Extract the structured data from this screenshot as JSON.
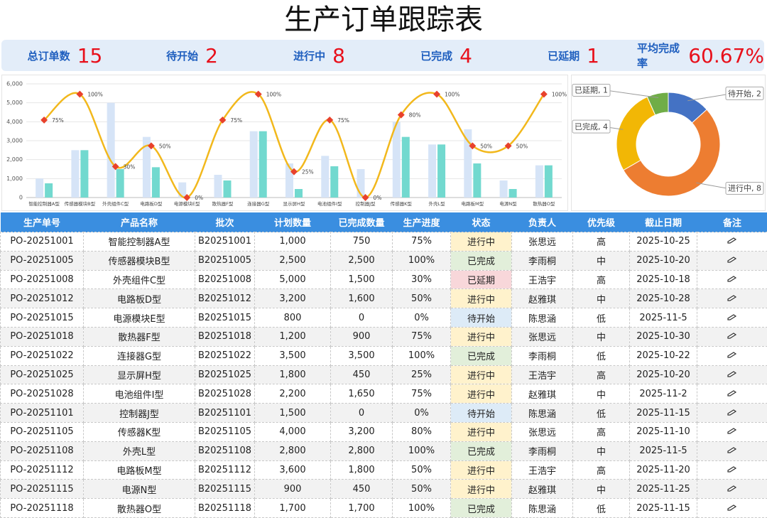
{
  "title": "生产订单跟踪表",
  "kpis": [
    {
      "label": "总订单数",
      "value": 15
    },
    {
      "label": "待开始",
      "value": 2
    },
    {
      "label": "进行中",
      "value": 8
    },
    {
      "label": "已完成",
      "value": 4
    },
    {
      "label": "已延期",
      "value": 1
    },
    {
      "label": "平均完成率",
      "value": "60.67%"
    }
  ],
  "chart_data": [
    {
      "type": "bar",
      "categories": [
        "智能控制器A型",
        "传感器模块B型",
        "外壳组件C型",
        "电路板D型",
        "电源模块E型",
        "散热器F型",
        "连接器G型",
        "显示屏H型",
        "电池组件I型",
        "控制器J型",
        "传感器K型",
        "外壳L型",
        "电路板M型",
        "电源N型",
        "散热器O型"
      ],
      "series": [
        {
          "color": "#d6e4f7",
          "values": [
            1000,
            2500,
            5000,
            3200,
            800,
            1200,
            3500,
            1800,
            2200,
            1500,
            4000,
            2800,
            3600,
            900,
            1700
          ]
        },
        {
          "color": "#72d9cf",
          "values": [
            750,
            2500,
            1500,
            1600,
            0,
            900,
            3500,
            450,
            1650,
            0,
            3200,
            2800,
            1800,
            450,
            1700
          ]
        },
        {
          "type": "line",
          "axis": "y2",
          "color": "#f2b81c",
          "marker_color": "#e8412c",
          "values": [
            75,
            100,
            30,
            50,
            0,
            75,
            100,
            25,
            75,
            0,
            80,
            100,
            50,
            50,
            100
          ],
          "value_labels": [
            "75%",
            "100%",
            "30%",
            "50%",
            "0%",
            "75%",
            "100%",
            "25%",
            "75%",
            "0%",
            "80%",
            "100%",
            "50%",
            "50%",
            "100%"
          ]
        }
      ],
      "ylim": [
        0,
        6000
      ],
      "yticks": [
        0,
        {
          "value": 1000,
          "label": "1,000"
        },
        {
          "value": 2000,
          "label": "2,000"
        },
        {
          "value": 3000,
          "label": "3,000"
        },
        {
          "value": 4000,
          "label": "4,000"
        },
        {
          "value": 5000,
          "label": "5,000"
        },
        {
          "value": 6000,
          "label": "6,000"
        }
      ],
      "y2lim": [
        0,
        110
      ],
      "grid": true
    },
    {
      "type": "pie",
      "categories": [
        "待开始",
        "进行中",
        "已完成",
        "已延期"
      ],
      "values": [
        2,
        8,
        4,
        1
      ],
      "value_labels": [
        "待开始, 2",
        "进行中, 8",
        "已完成, 4",
        "已延期, 1"
      ],
      "colors": [
        "#4472c4",
        "#ed7d31",
        "#f2b705",
        "#70ad47"
      ],
      "donut": true
    }
  ],
  "table": {
    "header": [
      "生产单号",
      "产品名称",
      "批次",
      "计划数量",
      "已完成数量",
      "生产进度",
      "状态",
      "负责人",
      "优先级",
      "截止日期",
      "备注"
    ],
    "rows": [
      [
        "PO-20251001",
        "智能控制器A型",
        "B20251001",
        "1,000",
        "750",
        "75%",
        "进行中",
        "张思远",
        "高",
        "2025-10-25"
      ],
      [
        "PO-20251005",
        "传感器模块B型",
        "B20251005",
        "2,500",
        "2,500",
        "100%",
        "已完成",
        "李雨桐",
        "中",
        "2025-10-20"
      ],
      [
        "PO-20251008",
        "外壳组件C型",
        "B20251008",
        "5,000",
        "1,500",
        "30%",
        "已延期",
        "王浩宇",
        "高",
        "2025-10-18"
      ],
      [
        "PO-20251012",
        "电路板D型",
        "B20251012",
        "3,200",
        "1,600",
        "50%",
        "进行中",
        "赵雅琪",
        "中",
        "2025-10-28"
      ],
      [
        "PO-20251015",
        "电源模块E型",
        "B20251015",
        "800",
        "0",
        "0%",
        "待开始",
        "陈思涵",
        "低",
        "2025-11-5"
      ],
      [
        "PO-20251018",
        "散热器F型",
        "B20251018",
        "1,200",
        "900",
        "75%",
        "进行中",
        "张思远",
        "中",
        "2025-10-30"
      ],
      [
        "PO-20251022",
        "连接器G型",
        "B20251022",
        "3,500",
        "3,500",
        "100%",
        "已完成",
        "李雨桐",
        "低",
        "2025-10-22"
      ],
      [
        "PO-20251025",
        "显示屏H型",
        "B20251025",
        "1,800",
        "450",
        "25%",
        "进行中",
        "王浩宇",
        "高",
        "2025-10-20"
      ],
      [
        "PO-20251028",
        "电池组件I型",
        "B20251028",
        "2,200",
        "1,650",
        "75%",
        "进行中",
        "赵雅琪",
        "中",
        "2025-11-2"
      ],
      [
        "PO-20251101",
        "控制器J型",
        "B20251101",
        "1,500",
        "0",
        "0%",
        "待开始",
        "陈思涵",
        "低",
        "2025-11-15"
      ],
      [
        "PO-20251105",
        "传感器K型",
        "B20251105",
        "4,000",
        "3,200",
        "80%",
        "进行中",
        "张思远",
        "高",
        "2025-11-10"
      ],
      [
        "PO-20251108",
        "外壳L型",
        "B20251108",
        "2,800",
        "2,800",
        "100%",
        "已完成",
        "李雨桐",
        "中",
        "2025-11-5"
      ],
      [
        "PO-20251112",
        "电路板M型",
        "B20251112",
        "3,600",
        "1,800",
        "50%",
        "进行中",
        "王浩宇",
        "高",
        "2025-11-20"
      ],
      [
        "PO-20251115",
        "电源N型",
        "B20251115",
        "900",
        "450",
        "50%",
        "进行中",
        "赵雅琪",
        "中",
        "2025-11-25"
      ],
      [
        "PO-20251118",
        "散热器O型",
        "B20251118",
        "1,700",
        "1,700",
        "100%",
        "已完成",
        "陈思涵",
        "低",
        "2025-11-15"
      ]
    ]
  }
}
